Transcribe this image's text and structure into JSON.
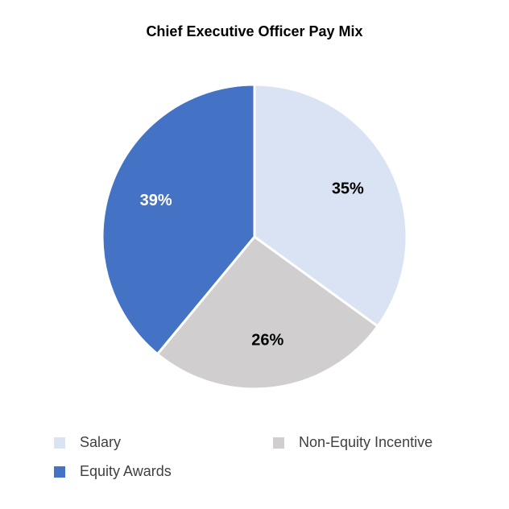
{
  "chart_data": {
    "type": "pie",
    "title": "Chief Executive Officer Pay Mix",
    "categories": [
      "Salary",
      "Non-Equity Incentive",
      "Equity Awards"
    ],
    "values": [
      35,
      26,
      39
    ],
    "value_labels": [
      "35%",
      "26%",
      "39%"
    ],
    "colors": [
      "#dae3f3",
      "#d0cece",
      "#4472c4"
    ]
  }
}
